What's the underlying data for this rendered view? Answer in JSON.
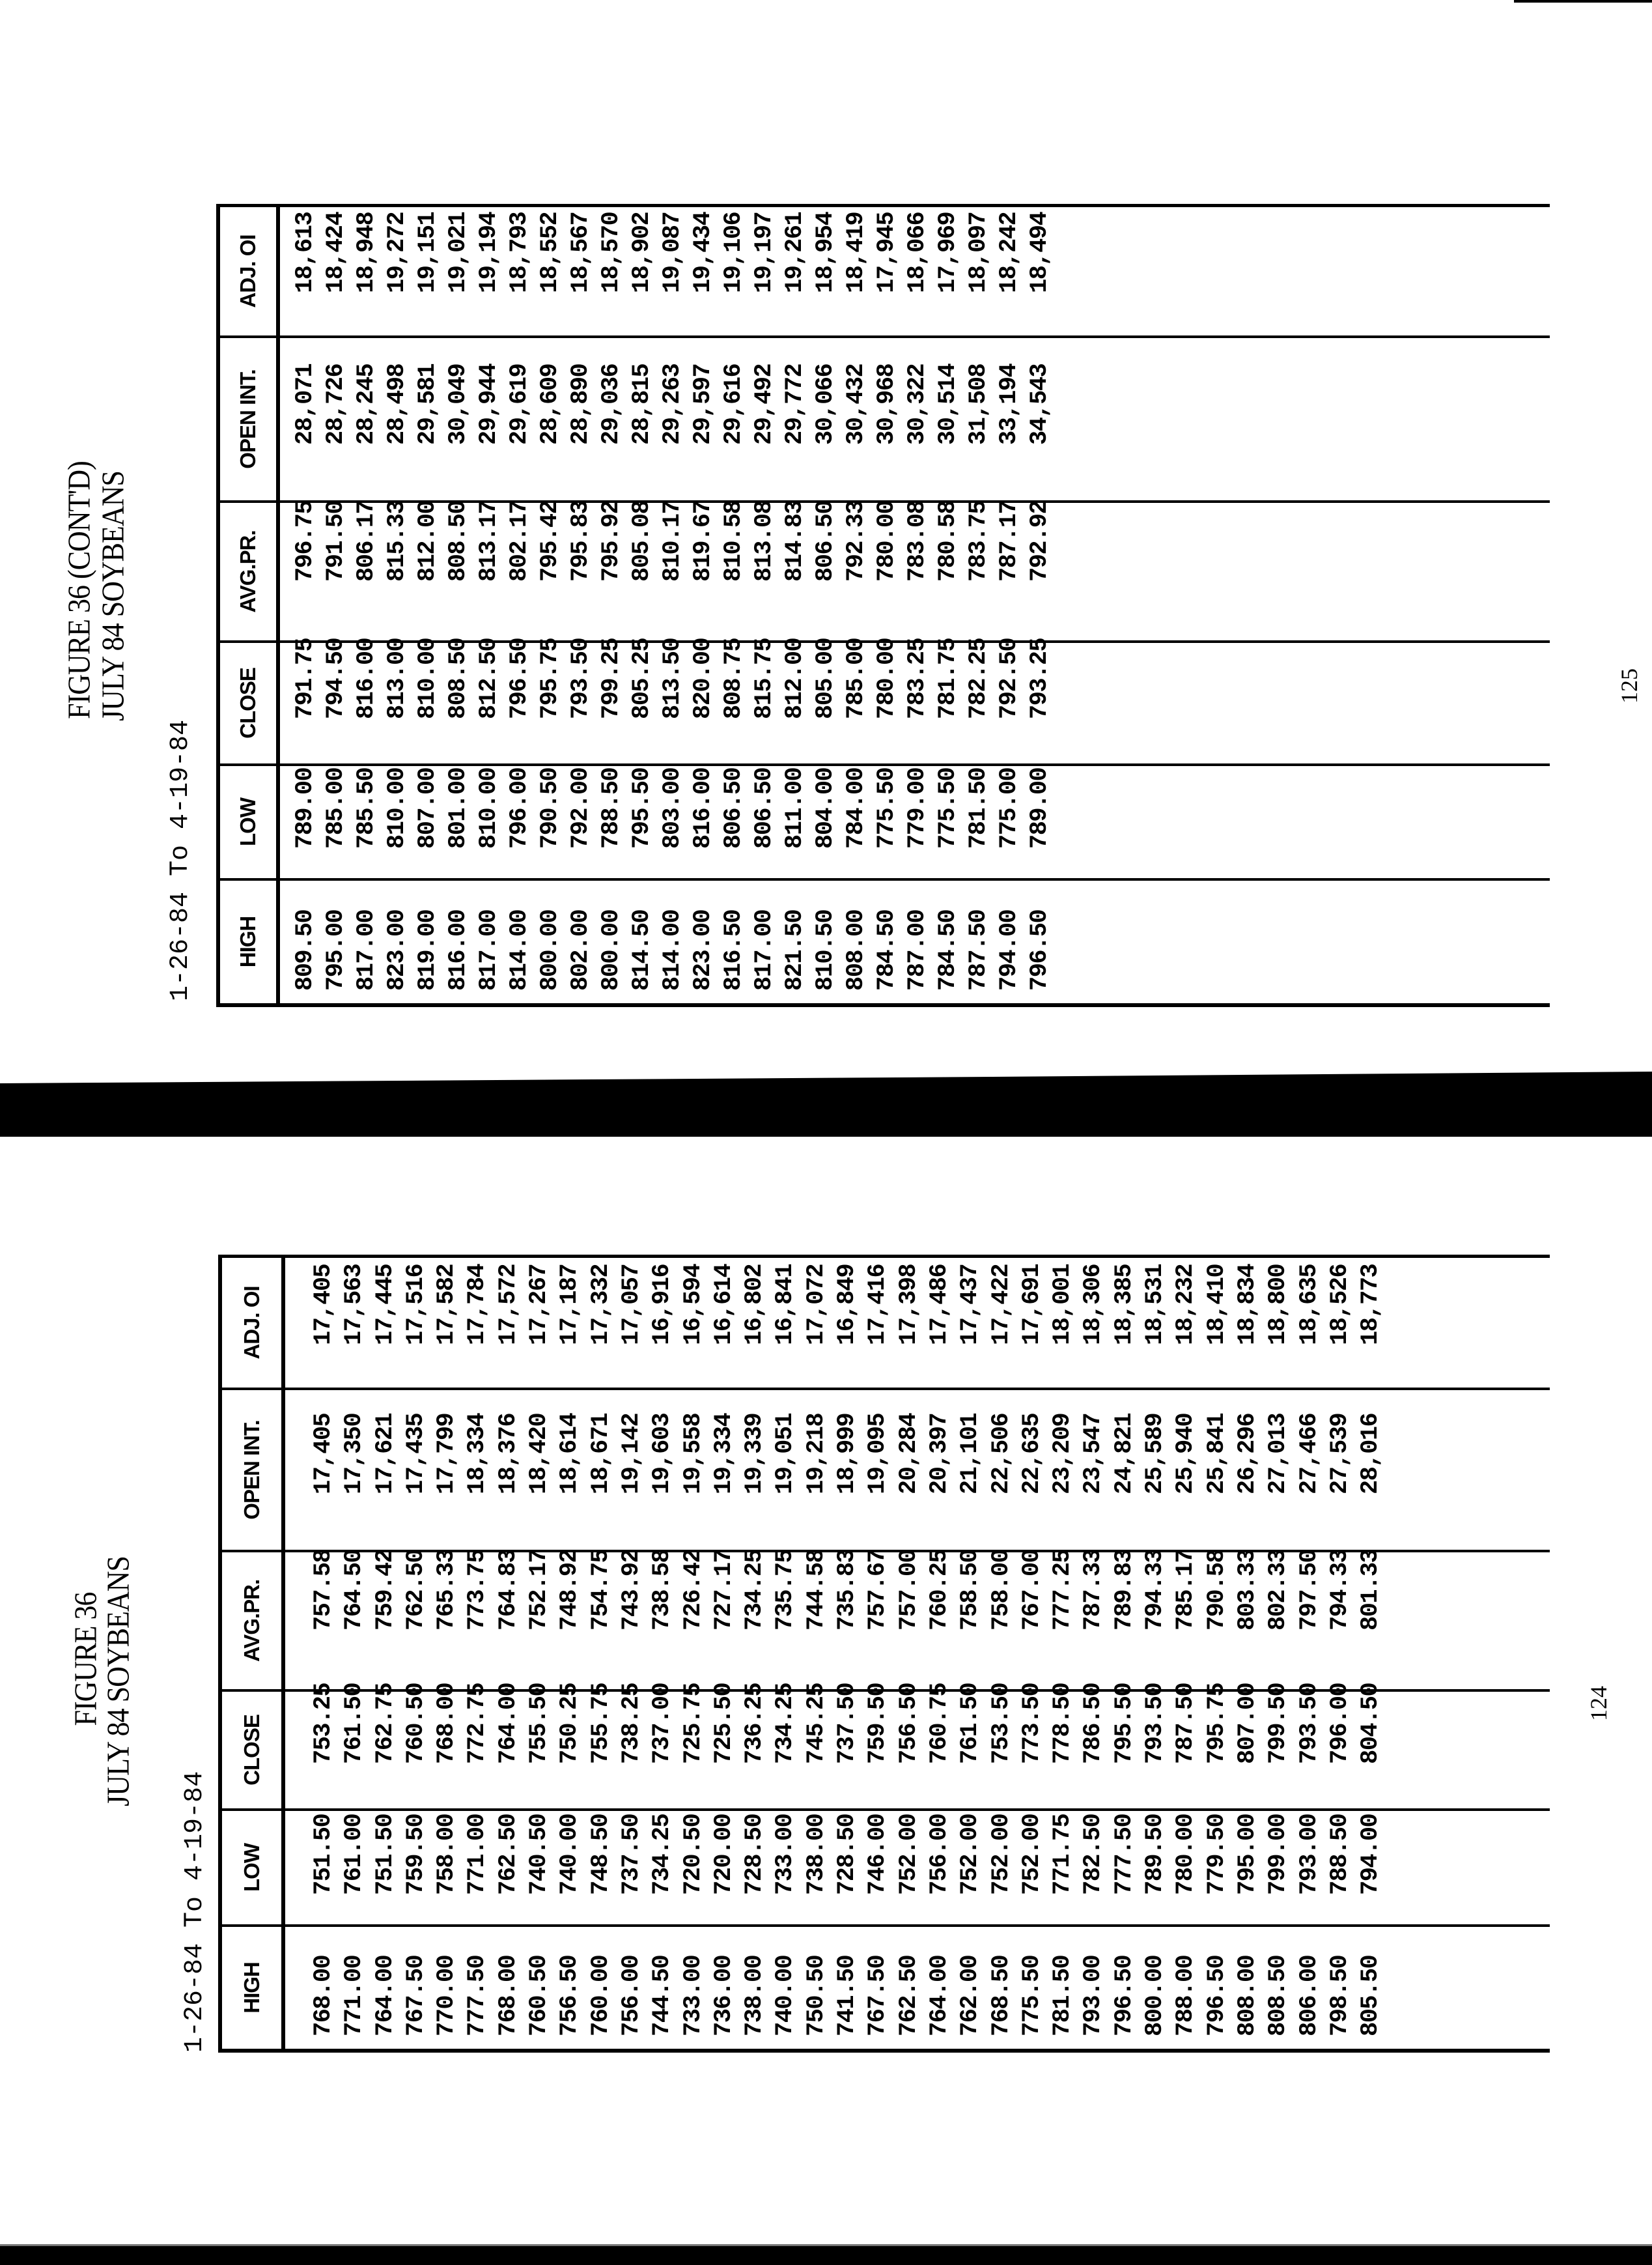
{
  "pages": [
    {
      "page_number": "124",
      "title": "FIGURE 36",
      "subtitle": "JULY 84 SOYBEANS",
      "date_range": "1-26-84 To 4-19-84",
      "columns": [
        "HIGH",
        "LOW",
        "CLOSE",
        "AVG.PR.",
        "OPEN INT.",
        "ADJ. OI"
      ],
      "rows": [
        [
          "768.00",
          "751.50",
          "753.25",
          "757.58",
          "17,405",
          "17,405"
        ],
        [
          "771.00",
          "761.00",
          "761.50",
          "764.50",
          "17,350",
          "17,563"
        ],
        [
          "764.00",
          "751.50",
          "762.75",
          "759.42",
          "17,621",
          "17,445"
        ],
        [
          "767.50",
          "759.50",
          "760.50",
          "762.50",
          "17,435",
          "17,516"
        ],
        [
          "770.00",
          "758.00",
          "768.00",
          "765.33",
          "17,799",
          "17,582"
        ],
        [
          "777.50",
          "771.00",
          "772.75",
          "773.75",
          "18,334",
          "17,784"
        ],
        [
          "768.00",
          "762.50",
          "764.00",
          "764.83",
          "18,376",
          "17,572"
        ],
        [
          "760.50",
          "740.50",
          "755.50",
          "752.17",
          "18,420",
          "17,267"
        ],
        [
          "756.50",
          "740.00",
          "750.25",
          "748.92",
          "18,614",
          "17,187"
        ],
        [
          "760.00",
          "748.50",
          "755.75",
          "754.75",
          "18,671",
          "17,332"
        ],
        [
          "756.00",
          "737.50",
          "738.25",
          "743.92",
          "19,142",
          "17,057"
        ],
        [
          "744.50",
          "734.25",
          "737.00",
          "738.58",
          "19,603",
          "16,916"
        ],
        [
          "733.00",
          "720.50",
          "725.75",
          "726.42",
          "19,558",
          "16,594"
        ],
        [
          "736.00",
          "720.00",
          "725.50",
          "727.17",
          "19,334",
          "16,614"
        ],
        [
          "738.00",
          "728.50",
          "736.25",
          "734.25",
          "19,339",
          "16,802"
        ],
        [
          "740.00",
          "733.00",
          "734.25",
          "735.75",
          "19,051",
          "16,841"
        ],
        [
          "750.50",
          "738.00",
          "745.25",
          "744.58",
          "19,218",
          "17,072"
        ],
        [
          "741.50",
          "728.50",
          "737.50",
          "735.83",
          "18,999",
          "16,849"
        ],
        [
          "767.50",
          "746.00",
          "759.50",
          "757.67",
          "19,095",
          "17,416"
        ],
        [
          "762.50",
          "752.00",
          "756.50",
          "757.00",
          "20,284",
          "17,398"
        ],
        [
          "764.00",
          "756.00",
          "760.75",
          "760.25",
          "20,397",
          "17,486"
        ],
        [
          "762.00",
          "752.00",
          "761.50",
          "758.50",
          "21,101",
          "17,437"
        ],
        [
          "768.50",
          "752.00",
          "753.50",
          "758.00",
          "22,506",
          "17,422"
        ],
        [
          "775.50",
          "752.00",
          "773.50",
          "767.00",
          "22,635",
          "17,691"
        ],
        [
          "781.50",
          "771.75",
          "778.50",
          "777.25",
          "23,209",
          "18,001"
        ],
        [
          "793.00",
          "782.50",
          "786.50",
          "787.33",
          "23,547",
          "18,306"
        ],
        [
          "796.50",
          "777.50",
          "795.50",
          "789.83",
          "24,821",
          "18,385"
        ],
        [
          "800.00",
          "789.50",
          "793.50",
          "794.33",
          "25,589",
          "18,531"
        ],
        [
          "788.00",
          "780.00",
          "787.50",
          "785.17",
          "25,940",
          "18,232"
        ],
        [
          "796.50",
          "779.50",
          "795.75",
          "790.58",
          "25,841",
          "18,410"
        ],
        [
          "808.00",
          "795.00",
          "807.00",
          "803.33",
          "26,296",
          "18,834"
        ],
        [
          "808.50",
          "799.00",
          "799.50",
          "802.33",
          "27,013",
          "18,800"
        ],
        [
          "806.00",
          "793.00",
          "793.50",
          "797.50",
          "27,466",
          "18,635"
        ],
        [
          "798.50",
          "788.50",
          "796.00",
          "794.33",
          "27,539",
          "18,526"
        ],
        [
          "805.50",
          "794.00",
          "804.50",
          "801.33",
          "28,016",
          "18,773"
        ]
      ]
    },
    {
      "page_number": "125",
      "title": "FIGURE 36 (CONT'D)",
      "subtitle": "JULY 84 SOYBEANS",
      "date_range": "1-26-84 To 4-19-84",
      "columns": [
        "HIGH",
        "LOW",
        "CLOSE",
        "AVG.PR.",
        "OPEN INT.",
        "ADJ. OI"
      ],
      "rows": [
        [
          "809.50",
          "789.00",
          "791.75",
          "796.75",
          "28,071",
          "18,613"
        ],
        [
          "795.00",
          "785.00",
          "794.50",
          "791.50",
          "28,726",
          "18,424"
        ],
        [
          "817.00",
          "785.50",
          "816.00",
          "806.17",
          "28,245",
          "18,948"
        ],
        [
          "823.00",
          "810.00",
          "813.00",
          "815.33",
          "28,498",
          "19,272"
        ],
        [
          "819.00",
          "807.00",
          "810.00",
          "812.00",
          "29,581",
          "19,151"
        ],
        [
          "816.00",
          "801.00",
          "808.50",
          "808.50",
          "30,049",
          "19,021"
        ],
        [
          "817.00",
          "810.00",
          "812.50",
          "813.17",
          "29,944",
          "19,194"
        ],
        [
          "814.00",
          "796.00",
          "796.50",
          "802.17",
          "29,619",
          "18,793"
        ],
        [
          "800.00",
          "790.50",
          "795.75",
          "795.42",
          "28,609",
          "18,552"
        ],
        [
          "802.00",
          "792.00",
          "793.50",
          "795.83",
          "28,890",
          "18,567"
        ],
        [
          "800.00",
          "788.50",
          "799.25",
          "795.92",
          "29,036",
          "18,570"
        ],
        [
          "814.50",
          "795.50",
          "805.25",
          "805.08",
          "28,815",
          "18,902"
        ],
        [
          "814.00",
          "803.00",
          "813.50",
          "810.17",
          "29,263",
          "19,087"
        ],
        [
          "823.00",
          "816.00",
          "820.00",
          "819.67",
          "29,597",
          "19,434"
        ],
        [
          "816.50",
          "806.50",
          "808.75",
          "810.58",
          "29,616",
          "19,106"
        ],
        [
          "817.00",
          "806.50",
          "815.75",
          "813.08",
          "29,492",
          "19,197"
        ],
        [
          "821.50",
          "811.00",
          "812.00",
          "814.83",
          "29,772",
          "19,261"
        ],
        [
          "810.50",
          "804.00",
          "805.00",
          "806.50",
          "30,066",
          "18,954"
        ],
        [
          "808.00",
          "784.00",
          "785.00",
          "792.33",
          "30,432",
          "18,419"
        ],
        [
          "784.50",
          "775.50",
          "780.00",
          "780.00",
          "30,968",
          "17,945"
        ],
        [
          "787.00",
          "779.00",
          "783.25",
          "783.08",
          "30,322",
          "18,066"
        ],
        [
          "784.50",
          "775.50",
          "781.75",
          "780.58",
          "30,514",
          "17,969"
        ],
        [
          "787.50",
          "781.50",
          "782.25",
          "783.75",
          "31,508",
          "18,097"
        ],
        [
          "794.00",
          "775.00",
          "792.50",
          "787.17",
          "33,194",
          "18,242"
        ],
        [
          "796.50",
          "789.00",
          "793.25",
          "792.92",
          "34,543",
          "18,494"
        ]
      ]
    }
  ]
}
